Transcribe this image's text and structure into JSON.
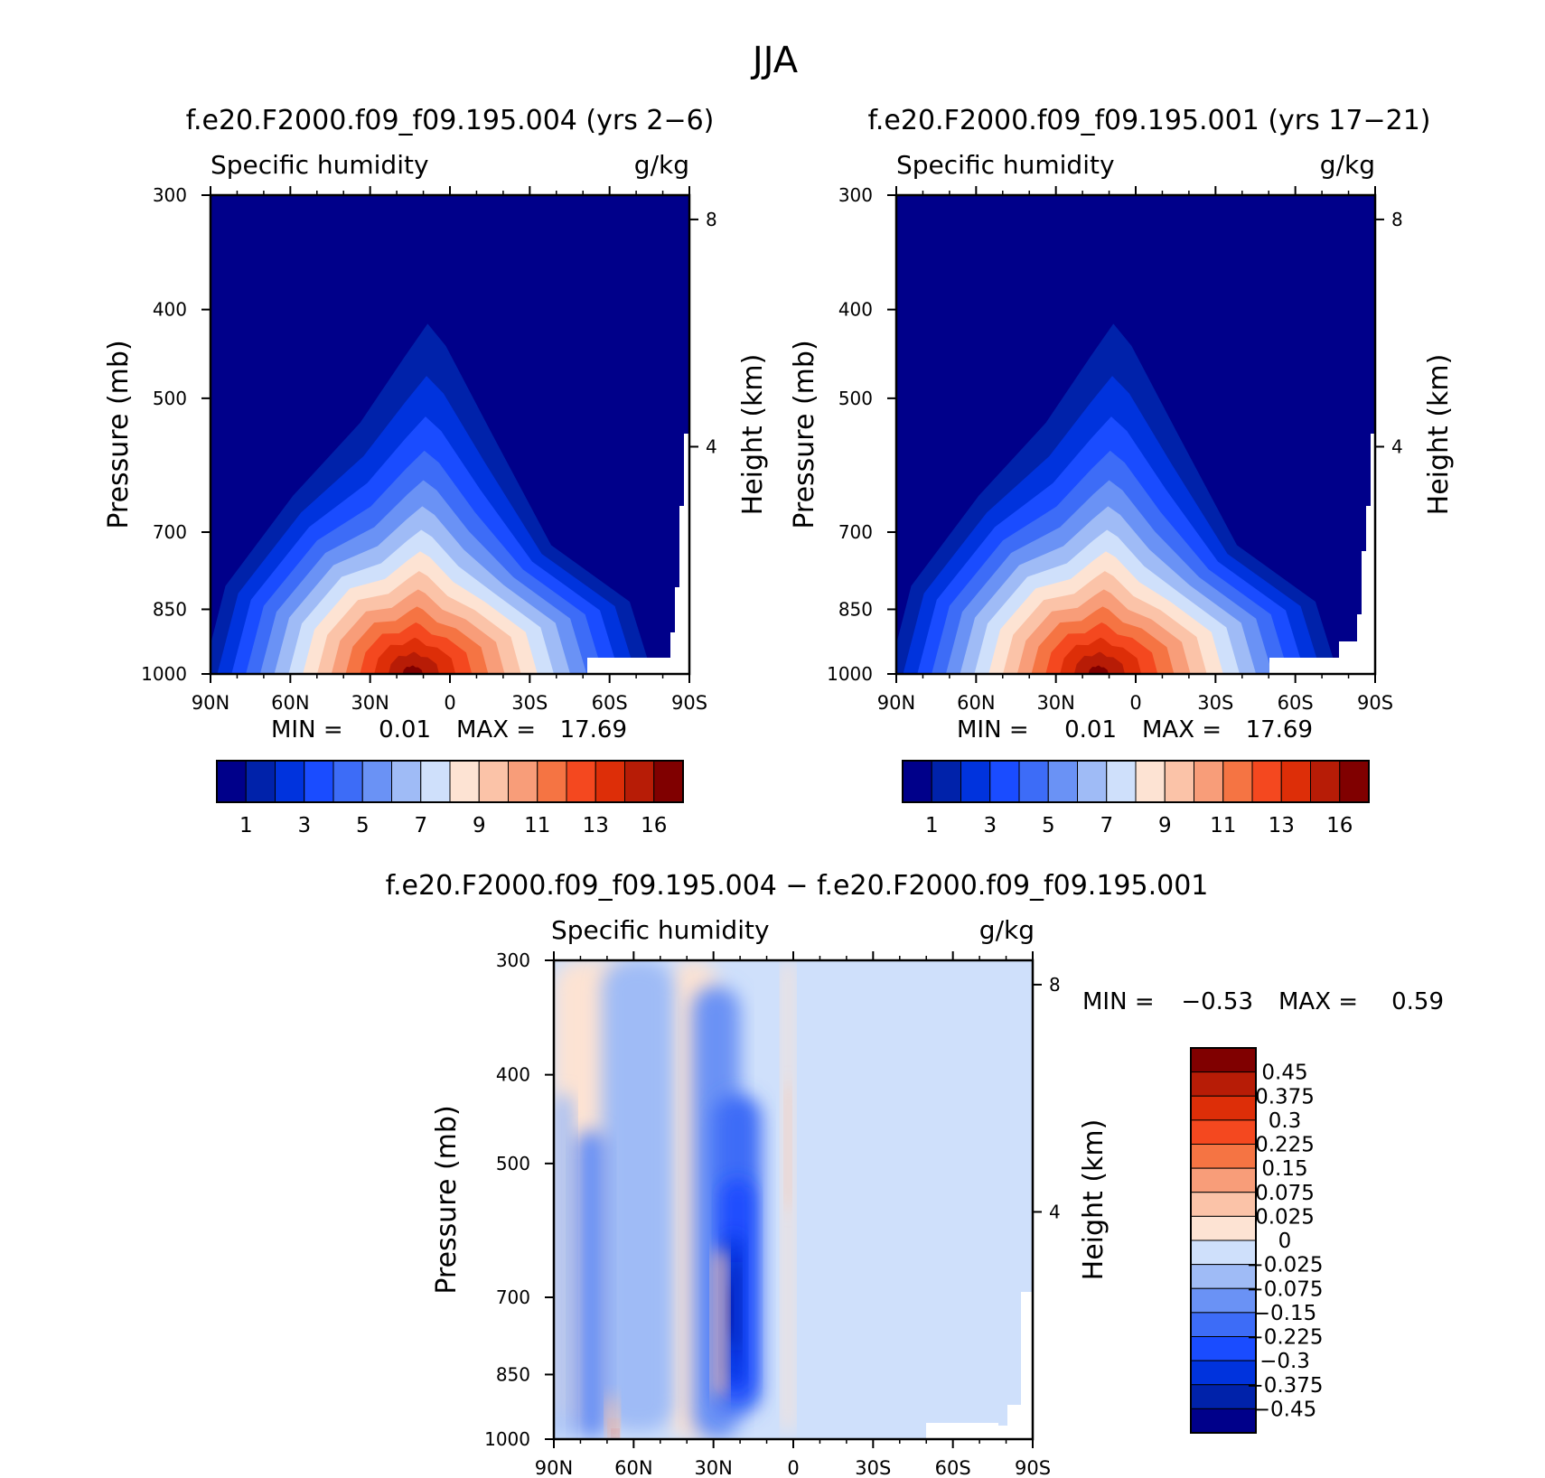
{
  "figure_title": "JJA",
  "chart_data": [
    {
      "type": "contour",
      "id": "case1",
      "title": "f.e20.F2000.f09_f09.195.004 (yrs 2−6)",
      "subtitle_left": "Specific humidity",
      "subtitle_right": "g/kg",
      "ylabel": "Pressure (mb)",
      "ylabel_right": "Height (km)",
      "x_ticks": [
        "90N",
        "60N",
        "30N",
        "0",
        "30S",
        "60S",
        "90S"
      ],
      "xlim": [
        90,
        -90
      ],
      "y_ticks": [
        300,
        400,
        500,
        700,
        850,
        1000
      ],
      "ylim_mb": [
        300,
        1000
      ],
      "y_right_ticks": [
        8,
        4
      ],
      "min_label": "MIN =",
      "min_value": "0.01",
      "max_label": "MAX =",
      "max_value": "17.69",
      "colorbar_labels": [
        "1",
        "3",
        "5",
        "7",
        "9",
        "11",
        "13",
        "16"
      ],
      "humidity_peak": {
        "lat": 8,
        "pressure_mb": 1000,
        "value": 17.69
      }
    },
    {
      "type": "contour",
      "id": "case2",
      "title": "f.e20.F2000.f09_f09.195.001 (yrs 17−21)",
      "subtitle_left": "Specific humidity",
      "subtitle_right": "g/kg",
      "ylabel": "Pressure (mb)",
      "ylabel_right": "Height (km)",
      "x_ticks": [
        "90N",
        "60N",
        "30N",
        "0",
        "30S",
        "60S",
        "90S"
      ],
      "xlim": [
        90,
        -90
      ],
      "y_ticks": [
        300,
        400,
        500,
        700,
        850,
        1000
      ],
      "ylim_mb": [
        300,
        1000
      ],
      "y_right_ticks": [
        8,
        4
      ],
      "min_label": "MIN =",
      "min_value": "0.01",
      "max_label": "MAX =",
      "max_value": "17.69",
      "colorbar_labels": [
        "1",
        "3",
        "5",
        "7",
        "9",
        "11",
        "13",
        "16"
      ],
      "humidity_peak": {
        "lat": 8,
        "pressure_mb": 1000,
        "value": 17.69
      }
    },
    {
      "type": "contour",
      "id": "diff",
      "title": "f.e20.F2000.f09_f09.195.004 − f.e20.F2000.f09_f09.195.001",
      "subtitle_left": "Specific humidity",
      "subtitle_right": "g/kg",
      "ylabel": "Pressure (mb)",
      "ylabel_right": "Height (km)",
      "x_ticks": [
        "90N",
        "60N",
        "30N",
        "0",
        "30S",
        "60S",
        "90S"
      ],
      "xlim": [
        90,
        -90
      ],
      "y_ticks": [
        300,
        400,
        500,
        700,
        850,
        1000
      ],
      "ylim_mb": [
        300,
        1000
      ],
      "y_right_ticks": [
        8,
        4
      ],
      "min_label": "MIN =",
      "min_value": "−0.53",
      "max_label": "MAX =",
      "max_value": "0.59",
      "colorbar_labels": [
        "0.45",
        "0.375",
        "0.3",
        "0.225",
        "0.15",
        "0.075",
        "0.025",
        "0",
        "−0.025",
        "−0.075",
        "−0.15",
        "−0.225",
        "−0.3",
        "−0.375",
        "−0.45"
      ]
    }
  ],
  "colors": {
    "seq_scale": [
      "#00008a",
      "#0022aa",
      "#0033dd",
      "#1a4cff",
      "#3d6cf7",
      "#6a92f5",
      "#9fbbf6",
      "#cfe0fb",
      "#fde3d3",
      "#fbc3a8",
      "#f89d79",
      "#f57443",
      "#f4481f",
      "#dd2e08",
      "#b71c06",
      "#800000"
    ],
    "div_scale": [
      "#800000",
      "#b71c06",
      "#dd2e08",
      "#f4481f",
      "#f57443",
      "#f89d79",
      "#fbc3a8",
      "#fde3d3",
      "#cfe0fb",
      "#9fbbf6",
      "#6a92f5",
      "#3d6cf7",
      "#1a4cff",
      "#0033dd",
      "#0022aa",
      "#00008a"
    ]
  }
}
